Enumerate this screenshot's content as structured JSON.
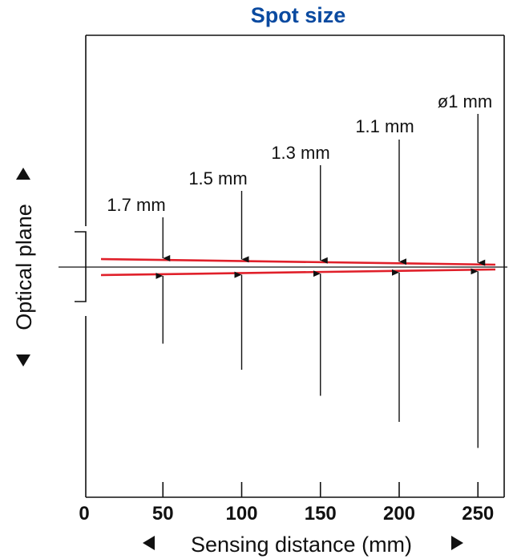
{
  "title": "Spot size",
  "title_color": "#0a4aa0",
  "beam_color": "#e0202a",
  "ylabel": "Optical plane",
  "xlabel": "Sensing distance (mm)",
  "x_ticks": [
    "0",
    "50",
    "100",
    "150",
    "200",
    "250"
  ],
  "spots": [
    {
      "distance": 50,
      "label": "1.7 mm",
      "size": 1.7
    },
    {
      "distance": 100,
      "label": "1.5 mm",
      "size": 1.5
    },
    {
      "distance": 150,
      "label": "1.3 mm",
      "size": 1.3
    },
    {
      "distance": 200,
      "label": "1.1 mm",
      "size": 1.1
    },
    {
      "distance": 250,
      "label": "ø1 mm",
      "size": 1.0
    }
  ]
}
